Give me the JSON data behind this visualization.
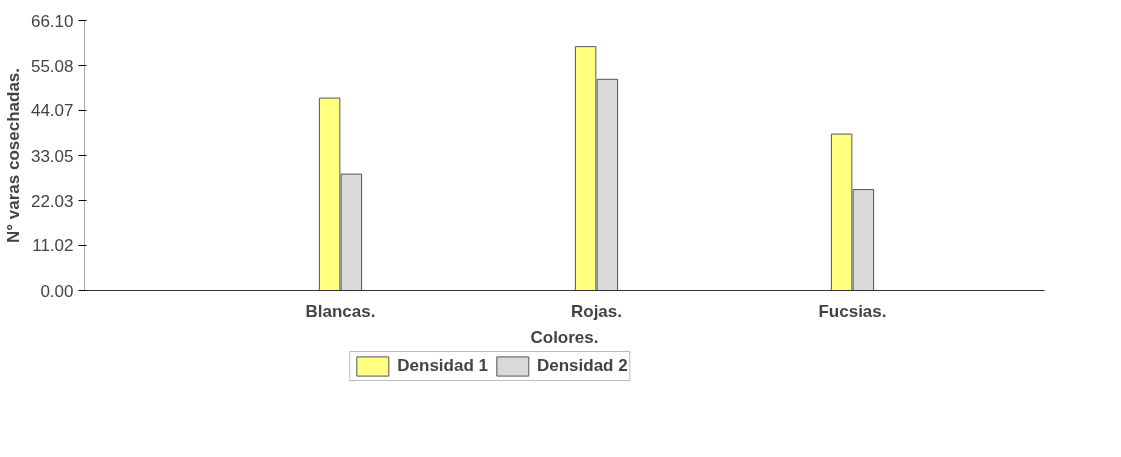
{
  "chart_data": {
    "type": "bar",
    "xlabel": "Colores.",
    "ylabel": "N° varas cosechadas.",
    "categories": [
      "Blancas.",
      "Rojas.",
      "Fucsias."
    ],
    "series": [
      {
        "name": "Densidad 1",
        "color": "#ffff80",
        "values": [
          47.1,
          59.7,
          38.3
        ]
      },
      {
        "name": "Densidad 2",
        "color": "#d9d9d9",
        "values": [
          28.5,
          51.7,
          24.7
        ]
      }
    ],
    "ylim": [
      0,
      66.1
    ],
    "yticks": [
      {
        "value": 0,
        "label": "0.00"
      },
      {
        "value": 11.02,
        "label": "11.02"
      },
      {
        "value": 22.03,
        "label": "22.03"
      },
      {
        "value": 33.05,
        "label": "33.05"
      },
      {
        "value": 44.07,
        "label": "44.07"
      },
      {
        "value": 55.08,
        "label": "55.08"
      },
      {
        "value": 66.1,
        "label": "66.10"
      }
    ],
    "grid": false,
    "legend": "bottom"
  }
}
